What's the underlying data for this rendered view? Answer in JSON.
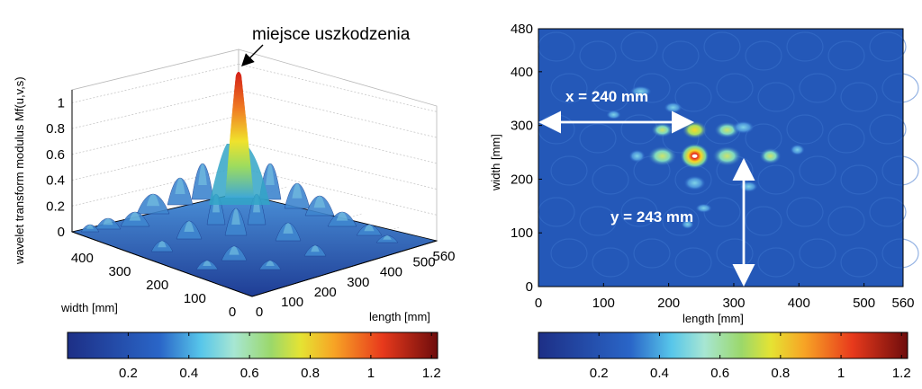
{
  "chart_data": [
    {
      "type": "surface",
      "zlabel": "wavelet transform modulus Mf(u,v,s)",
      "xlabel": "length [mm]",
      "ylabel": "width [mm]",
      "annotation": "miejsce uszkodzenia",
      "xticks": [
        "0",
        "100",
        "200",
        "300",
        "400",
        "500",
        "560"
      ],
      "yticks": [
        "0",
        "100",
        "200",
        "300",
        "400"
      ],
      "zticks": [
        "0",
        "0.2",
        "0.4",
        "0.6",
        "0.8",
        "1"
      ],
      "xlim": [
        0,
        560
      ],
      "ylim": [
        0,
        480
      ],
      "zlim": [
        0,
        1.1
      ],
      "peak": {
        "x": 240,
        "y": 243,
        "z": 1.1
      },
      "grid": true
    },
    {
      "type": "heatmap",
      "xlabel": "length [mm]",
      "ylabel": "width [mm]",
      "xticks": [
        "0",
        "100",
        "200",
        "300",
        "400",
        "500",
        "560"
      ],
      "yticks": [
        "0",
        "100",
        "200",
        "300",
        "400",
        "480"
      ],
      "xlim": [
        0,
        560
      ],
      "ylim": [
        0,
        480
      ],
      "annotations": [
        "x = 240 mm",
        "y = 243 mm"
      ],
      "peak": {
        "x": 240,
        "y": 243
      }
    }
  ],
  "colorbar": {
    "ticks": [
      "0.2",
      "0.4",
      "0.6",
      "0.8",
      "1",
      "1.2"
    ],
    "range": [
      0,
      1.22
    ]
  },
  "colors": {
    "low": "#1f3d99",
    "mid": "#7fe0c8",
    "high": "#e8241a"
  }
}
